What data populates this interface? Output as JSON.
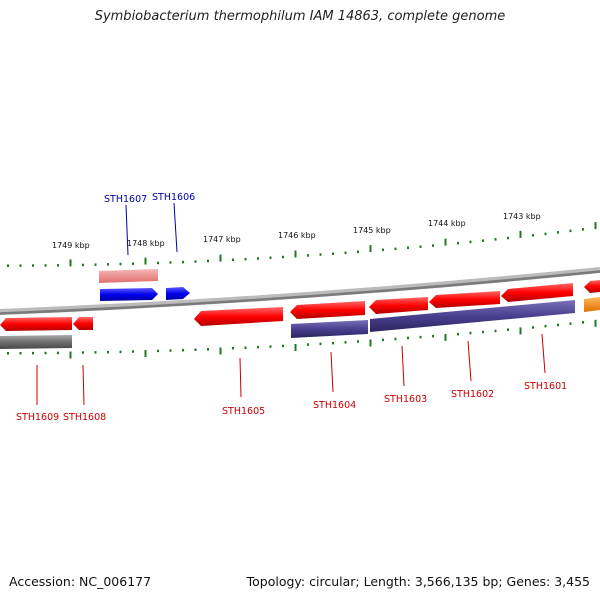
{
  "title": "Symbiobacterium thermophilum IAM 14863, complete genome",
  "footer": {
    "accession": "Accession: NC_006177",
    "topology": "Topology: circular; Length: 3,566,135 bp; Genes: 3,455"
  },
  "colors": {
    "backbone": "#888888",
    "tick": "#1e7a1e",
    "forward_cds": "#ff0000",
    "forward_cds_light": "#f28a8a",
    "reverse_cds": "#4a3f8f",
    "gray_feature": "#707070",
    "blue_gene": "#0000ee",
    "orange_gene": "#ff8c00",
    "label_blue": "#0000aa",
    "label_red": "#cc0000"
  },
  "scale_labels": [
    "1749 kbp",
    "1748 kbp",
    "1747 kbp",
    "1746 kbp",
    "1745 kbp",
    "1744 kbp",
    "1743 kbp"
  ],
  "top_gene_labels": [
    "STH1607",
    "STH1606"
  ],
  "bottom_gene_labels": [
    "STH1609",
    "STH1608",
    "STH1605",
    "STH1604",
    "STH1603",
    "STH1602",
    "STH1601"
  ]
}
